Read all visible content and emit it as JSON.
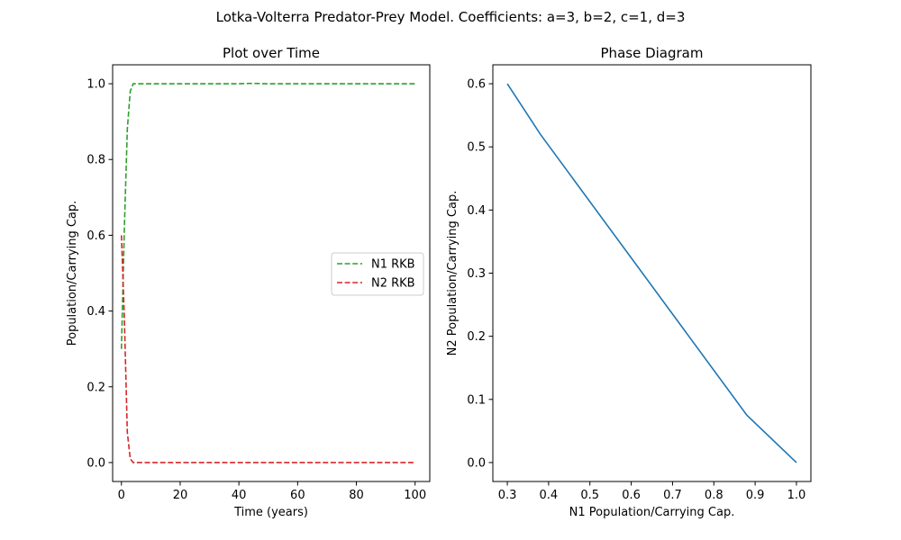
{
  "suptitle": "Lotka-Volterra Predator-Prey Model. Coefficients: a=3, b=2, c=1, d=3",
  "chart_data": [
    {
      "type": "line",
      "title": "Plot over Time",
      "xlabel": "Time (years)",
      "ylabel": "Population/Carrying Cap.",
      "xlim": [
        -3,
        105
      ],
      "ylim": [
        -0.05,
        1.05
      ],
      "xticks": [
        0,
        20,
        40,
        60,
        80,
        100
      ],
      "yticks": [
        0.0,
        0.2,
        0.4,
        0.6,
        0.8,
        1.0
      ],
      "legend_position": "center-right",
      "series": [
        {
          "name": "N1 RKB",
          "color": "#2ca02c",
          "dash": "dashed",
          "x": [
            0,
            1,
            2,
            3,
            4,
            6,
            10,
            20,
            30,
            40,
            44,
            50,
            60,
            70,
            80,
            90,
            100
          ],
          "y": [
            0.3,
            0.62,
            0.88,
            0.98,
            1.0,
            1.0,
            1.0,
            1.0,
            1.0,
            1.0,
            1.001,
            1.0,
            1.0,
            1.0,
            1.0,
            1.0,
            1.0
          ]
        },
        {
          "name": "N2 RKB",
          "color": "#d62728",
          "dash": "dashed",
          "x": [
            0,
            1,
            2,
            3,
            4,
            6,
            10,
            20,
            30,
            40,
            50,
            60,
            70,
            80,
            90,
            100
          ],
          "y": [
            0.6,
            0.38,
            0.08,
            0.01,
            0.0,
            0.0,
            0.0,
            0.0,
            0.0,
            0.0,
            0.0,
            0.0,
            0.0,
            0.0,
            0.0,
            0.0
          ]
        }
      ]
    },
    {
      "type": "line",
      "title": "Phase Diagram",
      "xlabel": "N1 Population/Carrying Cap.",
      "ylabel": "N2 Population/Carrying Cap.",
      "xlim": [
        0.265,
        1.035
      ],
      "ylim": [
        -0.03,
        0.63
      ],
      "xticks": [
        0.3,
        0.4,
        0.5,
        0.6,
        0.7,
        0.8,
        0.9,
        1.0
      ],
      "yticks": [
        0.0,
        0.1,
        0.2,
        0.3,
        0.4,
        0.5,
        0.6
      ],
      "series": [
        {
          "color": "#1f77b4",
          "dash": "solid",
          "x": [
            0.3,
            0.38,
            0.88,
            1.0
          ],
          "y": [
            0.6,
            0.52,
            0.075,
            0.0
          ]
        }
      ]
    }
  ]
}
